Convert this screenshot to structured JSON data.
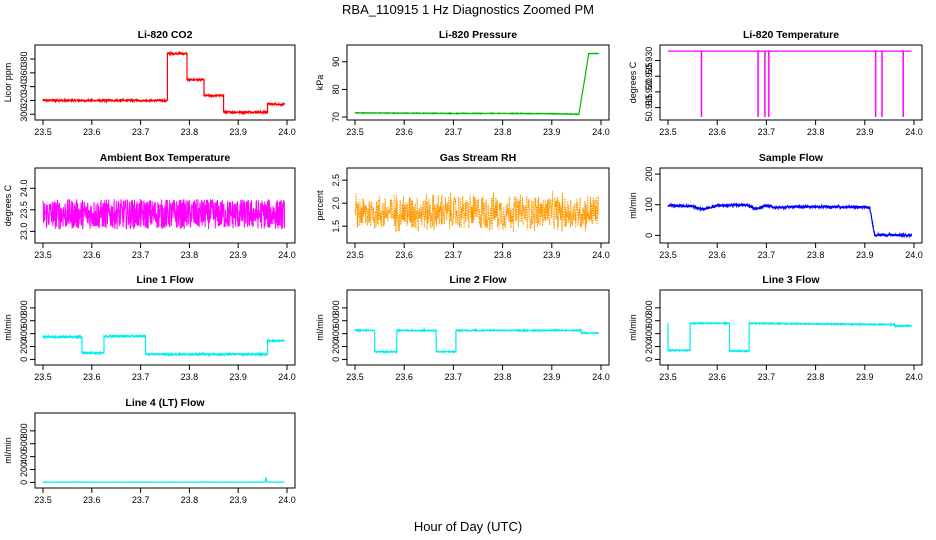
{
  "figure": {
    "title": "RBA_110915  1 Hz Diagnostics Zoomed PM",
    "xlabel": "Hour of Day (UTC)"
  },
  "chart_data": [
    {
      "id": "co2",
      "type": "line",
      "title": "Li-820 CO2",
      "ylabel": "Licor ppm",
      "xlim": [
        23.5,
        24.0
      ],
      "ylim": [
        296,
        396
      ],
      "xticks": [
        23.5,
        23.6,
        23.7,
        23.8,
        23.9,
        24.0
      ],
      "yticks": [
        300,
        320,
        340,
        360,
        380
      ],
      "color": "#ff0000",
      "noise": 1.2,
      "style": "line",
      "x": [
        23.5,
        23.755,
        23.755,
        23.795,
        23.795,
        23.83,
        23.83,
        23.87,
        23.87,
        23.96,
        23.96,
        23.995
      ],
      "y": [
        320,
        320,
        388,
        388,
        350,
        350,
        327,
        327,
        303,
        303,
        315,
        314
      ]
    },
    {
      "id": "pressure",
      "type": "line",
      "title": "Li-820 Pressure",
      "ylabel": "kPa",
      "xlim": [
        23.5,
        24.0
      ],
      "ylim": [
        70,
        95
      ],
      "xticks": [
        23.5,
        23.6,
        23.7,
        23.8,
        23.9,
        24.0
      ],
      "yticks": [
        70,
        80,
        90
      ],
      "color": "#00bb00",
      "noise": 0.1,
      "style": "line",
      "x": [
        23.5,
        23.6,
        23.7,
        23.8,
        23.9,
        23.955,
        23.968,
        23.975,
        23.995
      ],
      "y": [
        71.5,
        71.4,
        71.3,
        71.3,
        71.2,
        71.0,
        85,
        93,
        93
      ]
    },
    {
      "id": "temperature",
      "type": "line",
      "title": "Li-820 Temperature",
      "ylabel": "degrees C",
      "xlim": [
        23.5,
        24.0
      ],
      "ylim": [
        50.912,
        50.934
      ],
      "xticks": [
        23.5,
        23.6,
        23.7,
        23.8,
        23.9,
        24.0
      ],
      "yticks": [
        50.915,
        50.92,
        50.925,
        50.93
      ],
      "color": "#ff00ff",
      "noise": 0,
      "style": "line",
      "baseline": 50.933,
      "drop": 50.912,
      "spikes": [
        23.568,
        23.683,
        23.697,
        23.705,
        23.922,
        23.935,
        23.978
      ]
    },
    {
      "id": "ambient",
      "type": "line",
      "title": "Ambient Box Temperature",
      "ylabel": "degrees C",
      "xlim": [
        23.5,
        24.0
      ],
      "ylim": [
        22.8,
        24.4
      ],
      "xticks": [
        23.5,
        23.6,
        23.7,
        23.8,
        23.9,
        24.0
      ],
      "yticks": [
        23.0,
        23.5,
        24.0
      ],
      "color": "#ff00ff",
      "noise": 0.35,
      "style": "line",
      "x": [
        23.5,
        23.995
      ],
      "y": [
        23.4,
        23.4
      ]
    },
    {
      "id": "rh",
      "type": "scatter",
      "title": "Gas Stream RH",
      "ylabel": "percent",
      "xlim": [
        23.5,
        24.0
      ],
      "ylim": [
        1.2,
        2.7
      ],
      "xticks": [
        23.5,
        23.6,
        23.7,
        23.8,
        23.9,
        24.0
      ],
      "yticks": [
        1.5,
        2.0,
        2.5
      ],
      "color": "#ff9900",
      "noise": 0.3,
      "style": "points",
      "x": [
        23.5,
        23.995
      ],
      "y": [
        1.8,
        1.8
      ]
    },
    {
      "id": "sample",
      "type": "line",
      "title": "Sample Flow",
      "ylabel": "ml/min",
      "xlim": [
        23.5,
        24.0
      ],
      "ylim": [
        -15,
        210
      ],
      "xticks": [
        23.5,
        23.6,
        23.7,
        23.8,
        23.9,
        24.0
      ],
      "yticks": [
        0,
        100,
        200
      ],
      "color": "#0000ff",
      "noise": 4,
      "style": "line",
      "x": [
        23.5,
        23.55,
        23.57,
        23.6,
        23.66,
        23.68,
        23.7,
        23.72,
        23.75,
        23.9,
        23.91,
        23.92,
        23.995
      ],
      "y": [
        98,
        95,
        85,
        97,
        100,
        85,
        98,
        90,
        94,
        92,
        90,
        2,
        0
      ]
    },
    {
      "id": "line1",
      "type": "line",
      "title": "Line 1 Flow",
      "ylabel": "ml/min",
      "xlim": [
        23.5,
        24.0
      ],
      "ylim": [
        -40,
        1030
      ],
      "xticks": [
        23.5,
        23.6,
        23.7,
        23.8,
        23.9,
        24.0
      ],
      "yticks": [
        0,
        200,
        400,
        600,
        800
      ],
      "color": "#00eeee",
      "noise": 12,
      "style": "line",
      "x": [
        23.5,
        23.58,
        23.58,
        23.625,
        23.625,
        23.71,
        23.71,
        23.96,
        23.96,
        23.995
      ],
      "y": [
        350,
        350,
        100,
        100,
        360,
        360,
        80,
        80,
        290,
        290
      ]
    },
    {
      "id": "line2",
      "type": "line",
      "title": "Line 2 Flow",
      "ylabel": "ml/min",
      "xlim": [
        23.5,
        24.0
      ],
      "ylim": [
        -40,
        1030
      ],
      "xticks": [
        23.5,
        23.6,
        23.7,
        23.8,
        23.9,
        24.0
      ],
      "yticks": [
        0,
        200,
        400,
        600,
        800
      ],
      "color": "#00eeee",
      "noise": 8,
      "style": "line",
      "x": [
        23.5,
        23.54,
        23.54,
        23.585,
        23.585,
        23.665,
        23.665,
        23.705,
        23.705,
        23.96,
        23.96,
        23.995
      ],
      "y": [
        450,
        450,
        120,
        120,
        450,
        450,
        120,
        120,
        450,
        450,
        410,
        410
      ]
    },
    {
      "id": "line3",
      "type": "line",
      "title": "Line 3 Flow",
      "ylabel": "ml/min",
      "xlim": [
        23.5,
        24.0
      ],
      "ylim": [
        -40,
        1030
      ],
      "xticks": [
        23.5,
        23.6,
        23.7,
        23.8,
        23.9,
        24.0
      ],
      "yticks": [
        0,
        200,
        400,
        600,
        800
      ],
      "color": "#00eeee",
      "noise": 8,
      "style": "line",
      "x": [
        23.5,
        23.5,
        23.545,
        23.545,
        23.625,
        23.625,
        23.665,
        23.665,
        23.96,
        23.96,
        23.995
      ],
      "y": [
        560,
        140,
        140,
        560,
        560,
        130,
        130,
        560,
        540,
        520,
        520
      ]
    },
    {
      "id": "line4",
      "type": "line",
      "title": "Line 4 (LT) Flow",
      "ylabel": "ml/min",
      "xlim": [
        23.5,
        24.0
      ],
      "ylim": [
        -40,
        1030
      ],
      "xticks": [
        23.5,
        23.6,
        23.7,
        23.8,
        23.9,
        24.0
      ],
      "yticks": [
        0,
        200,
        400,
        600,
        800
      ],
      "color": "#00eeee",
      "noise": 2,
      "style": "line",
      "x": [
        23.5,
        23.955,
        23.957,
        23.959,
        23.995
      ],
      "y": [
        5,
        5,
        80,
        5,
        5
      ]
    }
  ]
}
